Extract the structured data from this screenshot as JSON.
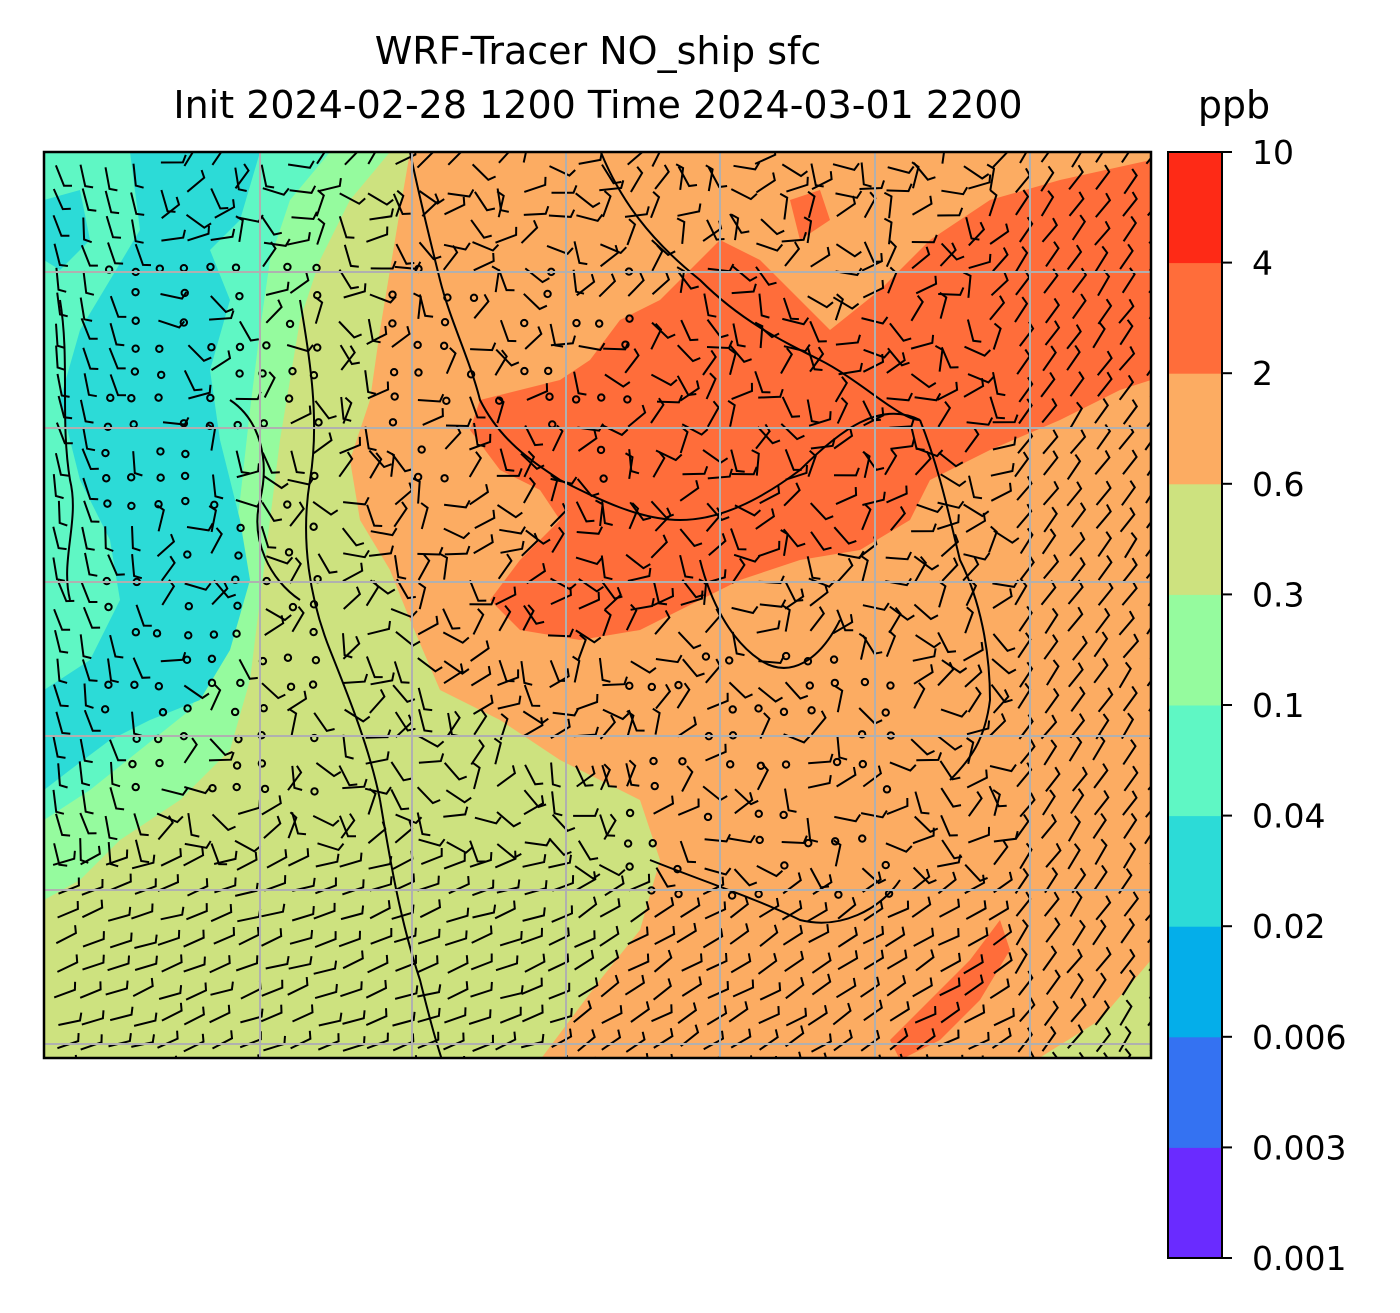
{
  "chart_data": {
    "type": "heatmap",
    "title_line1": "WRF-Tracer NO_ship sfc",
    "title_line2": "Init 2024-02-28 1200 Time 2024-03-01 2200",
    "units_label": "ppb",
    "colorbar": {
      "levels": [
        "0.001",
        "0.003",
        "0.006",
        "0.02",
        "0.04",
        "0.1",
        "0.3",
        "0.6",
        "2",
        "4",
        "10"
      ],
      "colors": [
        "#6a2bff",
        "#3472f2",
        "#04aeea",
        "#2cdbd7",
        "#5ff7c4",
        "#95fb9e",
        "#cde27f",
        "#fcac62",
        "#ff6d3a",
        "#fe2a16"
      ]
    },
    "grid": true,
    "overlay": "wind barbs",
    "field_notes": {
      "northwest": "0.02–0.1 ppb",
      "west_and_south": "0.3–0.6 ppb",
      "east": "0.6–2 ppb",
      "central_northeast_band": "2–4 ppb"
    }
  },
  "colors": {
    "grid": "#b0b0b0",
    "coast": "#000000",
    "axes": "#000000"
  }
}
